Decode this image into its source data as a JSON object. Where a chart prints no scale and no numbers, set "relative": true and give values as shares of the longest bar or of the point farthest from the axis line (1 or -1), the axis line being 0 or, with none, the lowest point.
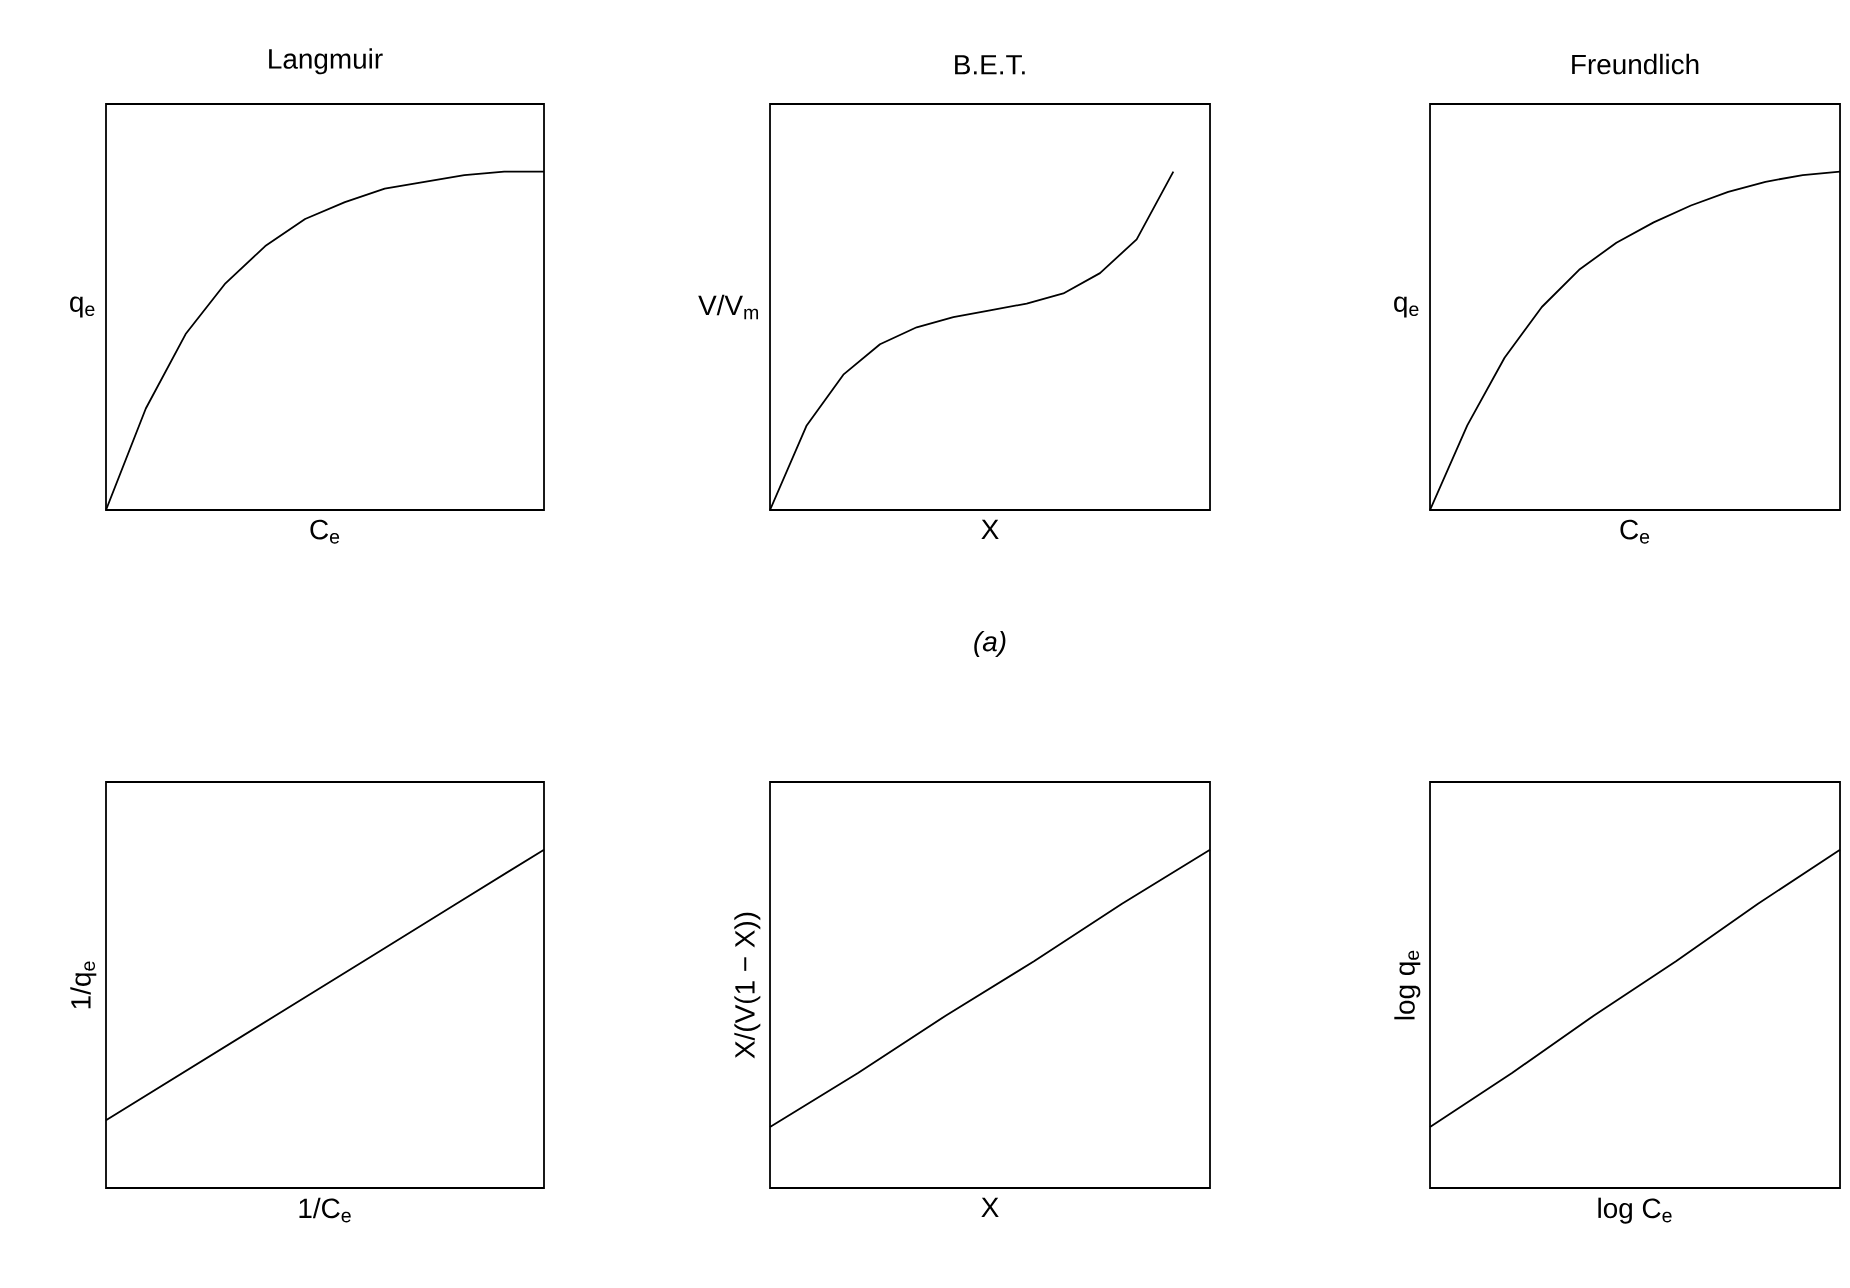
{
  "chart_data": [
    {
      "type": "line",
      "title": "Langmuir",
      "xlabel": "C$_{e}$",
      "ylabel": "q$_{e}$",
      "relative": true,
      "color": "#000000",
      "categories": [
        null,
        null,
        null,
        null,
        null,
        null,
        null,
        null,
        null,
        null,
        null,
        null
      ],
      "values": [
        0,
        0.3,
        0.52,
        0.67,
        0.78,
        0.86,
        0.91,
        0.95,
        0.97,
        0.99,
        1.0,
        1.0
      ]
    },
    {
      "type": "line",
      "title": "B.E.T.",
      "xlabel": "X",
      "ylabel": "V/V$_{m}$",
      "relative": true,
      "color": "#000000",
      "annotations": [
        "(a)"
      ],
      "categories": [
        null,
        null,
        null,
        null,
        null,
        null,
        null,
        null,
        null,
        null,
        null,
        null,
        null
      ],
      "values": [
        0,
        0.25,
        0.4,
        0.49,
        0.54,
        0.57,
        0.59,
        0.61,
        0.64,
        0.7,
        0.8,
        1.0,
        null
      ]
    },
    {
      "type": "line",
      "title": "Freundlich",
      "xlabel": "C$_{e}$",
      "ylabel": "q$_{e}$",
      "relative": true,
      "color": "#000000",
      "categories": [
        null,
        null,
        null,
        null,
        null,
        null,
        null,
        null,
        null,
        null,
        null,
        null
      ],
      "values": [
        0,
        0.25,
        0.45,
        0.6,
        0.71,
        0.79,
        0.85,
        0.9,
        0.94,
        0.97,
        0.99,
        1.0
      ]
    },
    {
      "type": "line",
      "xlabel": "1/C$_{e}$",
      "ylabel": "1/q$_{e}$",
      "relative": true,
      "color": "#000000",
      "categories": [
        null,
        null,
        null,
        null,
        null,
        null
      ],
      "values": [
        0.2,
        0.36,
        0.52,
        0.68,
        0.84,
        1.0
      ]
    },
    {
      "type": "line",
      "xlabel": "X",
      "ylabel": "X/(V(1 − X))",
      "relative": true,
      "color": "#000000",
      "categories": [
        null,
        null,
        null,
        null,
        null,
        null
      ],
      "values": [
        0.18,
        0.34,
        0.51,
        0.67,
        0.84,
        1.0
      ]
    },
    {
      "type": "line",
      "xlabel": "log C$_{e}$",
      "ylabel": "log q$_{e}$",
      "relative": true,
      "color": "#000000",
      "categories": [
        null,
        null,
        null,
        null,
        null,
        null
      ],
      "values": [
        0.18,
        0.34,
        0.51,
        0.67,
        0.84,
        1.0
      ]
    }
  ]
}
